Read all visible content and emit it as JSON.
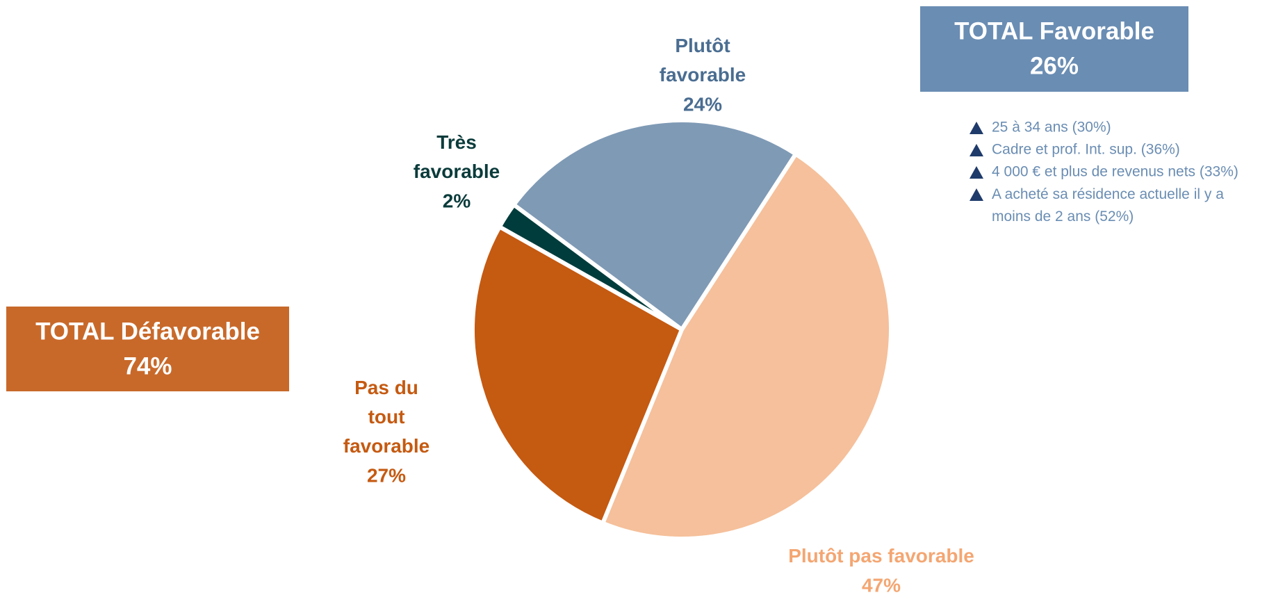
{
  "chart_data": {
    "type": "pie",
    "categories": [
      "Plutôt pas favorable",
      "Pas du tout favorable",
      "Très favorable",
      "Plutôt favorable"
    ],
    "values": [
      47,
      27,
      2,
      24
    ],
    "value_labels": [
      "47%",
      "27%",
      "2%",
      "24%"
    ],
    "colors": [
      "#f5c09b",
      "#c55a11",
      "#003c3c",
      "#7f9ab5"
    ],
    "label_colors": [
      "#f4a672",
      "#c55a11",
      "#0b3b3b",
      "#4a6d91"
    ]
  },
  "totals": [
    {
      "label": "TOTAL Favorable",
      "value": 26,
      "value_label": "26%",
      "color": "#6a8db3"
    },
    {
      "label": "TOTAL Défavorable",
      "value": 74,
      "value_label": "74%",
      "color": "#c8692a"
    }
  ],
  "highlights": [
    "25 à 34 ans (30%)",
    "Cadre et prof. Int. sup. (36%)",
    "4 000 € et plus de revenus nets (33%)",
    "A acheté sa résidence actuelle il y a moins de 2 ans (52%)"
  ]
}
